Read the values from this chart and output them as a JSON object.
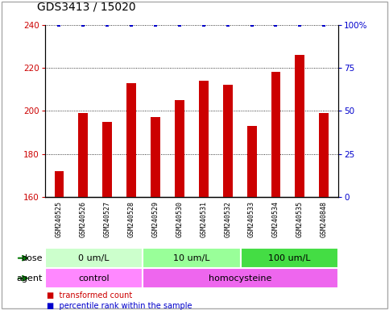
{
  "title": "GDS3413 / 15020",
  "samples": [
    "GSM240525",
    "GSM240526",
    "GSM240527",
    "GSM240528",
    "GSM240529",
    "GSM240530",
    "GSM240531",
    "GSM240532",
    "GSM240533",
    "GSM240534",
    "GSM240535",
    "GSM240848"
  ],
  "bar_values": [
    172,
    199,
    195,
    213,
    197,
    205,
    214,
    212,
    193,
    218,
    226,
    199
  ],
  "percentile_values": [
    100,
    100,
    100,
    100,
    100,
    100,
    100,
    100,
    100,
    100,
    100,
    100
  ],
  "bar_color": "#cc0000",
  "percentile_color": "#0000cc",
  "ylim_left": [
    160,
    240
  ],
  "ylim_right": [
    0,
    100
  ],
  "yticks_left": [
    160,
    180,
    200,
    220,
    240
  ],
  "yticks_right": [
    0,
    25,
    50,
    75,
    100
  ],
  "dose_groups": [
    {
      "label": "0 um/L",
      "start": 0,
      "end": 3,
      "color": "#ccffcc"
    },
    {
      "label": "10 um/L",
      "start": 4,
      "end": 7,
      "color": "#99ff99"
    },
    {
      "label": "100 um/L",
      "start": 8,
      "end": 11,
      "color": "#44dd44"
    }
  ],
  "agent_groups": [
    {
      "label": "control",
      "start": 0,
      "end": 3,
      "color": "#ff88ff"
    },
    {
      "label": "homocysteine",
      "start": 4,
      "end": 11,
      "color": "#ee66ee"
    }
  ],
  "dose_label": "dose",
  "agent_label": "agent",
  "legend_bar_label": "transformed count",
  "legend_pct_label": "percentile rank within the sample",
  "bg_color": "#ffffff",
  "tick_label_bg": "#cccccc",
  "border_color": "#aaaaaa",
  "title_fontsize": 10,
  "tick_fontsize": 7.5,
  "label_fontsize": 8,
  "sample_fontsize": 6,
  "bar_width": 0.4
}
